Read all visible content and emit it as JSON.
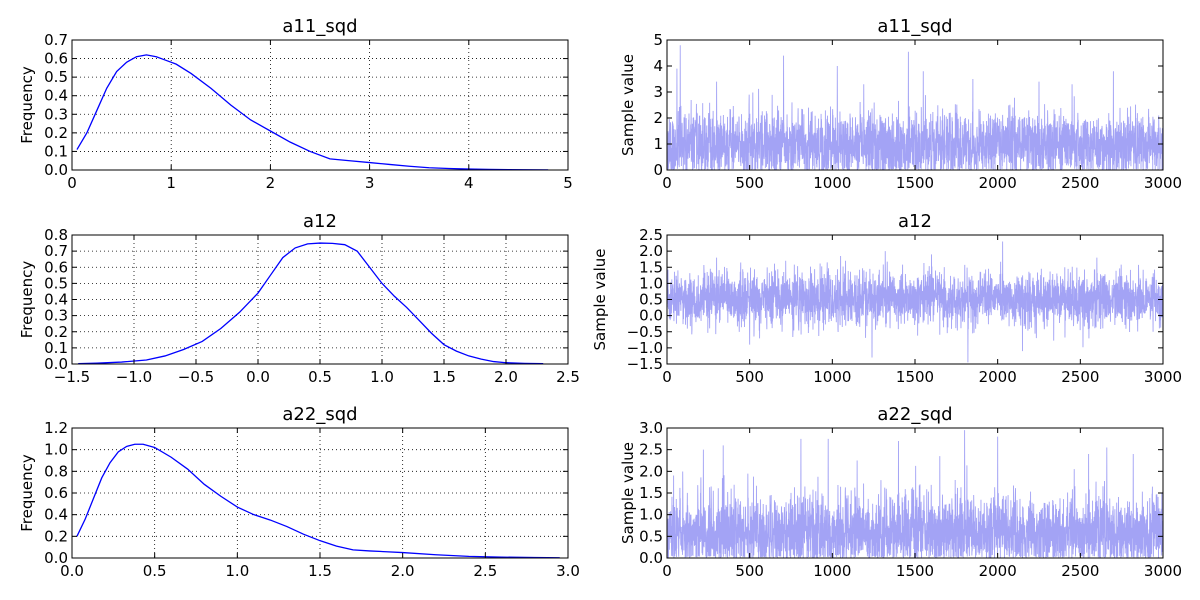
{
  "colors": {
    "kde_line": "#0000ff",
    "trace_line": "#a3a3f5",
    "axes": "#000000",
    "grid": "#000000",
    "background": "#ffffff"
  },
  "chart_data": [
    {
      "id": "a11_sqd_kde",
      "type": "line",
      "title": "a11_sqd",
      "ylabel": "Frequency",
      "xlim": [
        0,
        5
      ],
      "ylim": [
        0,
        0.7
      ],
      "xticks": [
        0,
        1,
        2,
        3,
        4,
        5
      ],
      "xtick_labels": [
        "0",
        "1",
        "2",
        "3",
        "4",
        "5"
      ],
      "yticks": [
        0,
        0.1,
        0.2,
        0.3,
        0.4,
        0.5,
        0.6,
        0.7
      ],
      "ytick_labels": [
        "0.0",
        "0.1",
        "0.2",
        "0.3",
        "0.4",
        "0.5",
        "0.6",
        "0.7"
      ],
      "grid": true,
      "x": [
        0.05,
        0.15,
        0.25,
        0.35,
        0.45,
        0.55,
        0.65,
        0.75,
        0.85,
        0.95,
        1.05,
        1.2,
        1.4,
        1.6,
        1.8,
        2.0,
        2.2,
        2.4,
        2.6,
        2.8,
        3.0,
        3.2,
        3.4,
        3.6,
        3.8,
        4.0,
        4.2,
        4.4,
        4.6,
        4.8
      ],
      "y": [
        0.11,
        0.2,
        0.32,
        0.44,
        0.53,
        0.58,
        0.61,
        0.62,
        0.61,
        0.59,
        0.57,
        0.52,
        0.44,
        0.35,
        0.27,
        0.21,
        0.15,
        0.1,
        0.06,
        0.05,
        0.04,
        0.03,
        0.02,
        0.012,
        0.008,
        0.005,
        0.003,
        0.002,
        0.001,
        0.0005
      ]
    },
    {
      "id": "a11_sqd_trace",
      "type": "line",
      "title": "a11_sqd",
      "ylabel": "Sample value",
      "xlim": [
        0,
        3000
      ],
      "ylim": [
        0,
        5
      ],
      "xticks": [
        0,
        500,
        1000,
        1500,
        2000,
        2500,
        3000
      ],
      "xtick_labels": [
        "0",
        "500",
        "1000",
        "1500",
        "2000",
        "2500",
        "3000"
      ],
      "yticks": [
        0,
        1,
        2,
        3,
        4,
        5
      ],
      "ytick_labels": [
        "0",
        "1",
        "2",
        "3",
        "4",
        "5"
      ],
      "grid": false,
      "trace": {
        "n": 3000,
        "mean": 0.95,
        "sd": 0.65,
        "min": 0.0,
        "max": 4.8,
        "seed": 11,
        "spikes": [
          [
            80,
            4.8
          ],
          [
            60,
            3.9
          ],
          [
            705,
            4.4
          ],
          [
            1460,
            4.55
          ],
          [
            1030,
            4.0
          ],
          [
            1550,
            3.8
          ],
          [
            1190,
            3.3
          ],
          [
            1850,
            3.5
          ],
          [
            2450,
            3.3
          ],
          [
            2700,
            3.8
          ],
          [
            2250,
            3.4
          ],
          [
            300,
            3.4
          ]
        ]
      }
    },
    {
      "id": "a12_kde",
      "type": "line",
      "title": "a12",
      "ylabel": "Frequency",
      "xlim": [
        -1.5,
        2.5
      ],
      "ylim": [
        0,
        0.8
      ],
      "xticks": [
        -1.5,
        -1.0,
        -0.5,
        0.0,
        0.5,
        1.0,
        1.5,
        2.0,
        2.5
      ],
      "xtick_labels": [
        "−1.5",
        "−1.0",
        "−0.5",
        "0.0",
        "0.5",
        "1.0",
        "1.5",
        "2.0",
        "2.5"
      ],
      "yticks": [
        0,
        0.1,
        0.2,
        0.3,
        0.4,
        0.5,
        0.6,
        0.7,
        0.8
      ],
      "ytick_labels": [
        "0.0",
        "0.1",
        "0.2",
        "0.3",
        "0.4",
        "0.5",
        "0.6",
        "0.7",
        "0.8"
      ],
      "grid": true,
      "x": [
        -1.45,
        -1.3,
        -1.1,
        -0.9,
        -0.75,
        -0.6,
        -0.45,
        -0.3,
        -0.15,
        0.0,
        0.1,
        0.2,
        0.3,
        0.4,
        0.5,
        0.6,
        0.7,
        0.8,
        0.9,
        1.0,
        1.1,
        1.2,
        1.3,
        1.4,
        1.5,
        1.6,
        1.7,
        1.8,
        1.9,
        2.0,
        2.15,
        2.3
      ],
      "y": [
        0.002,
        0.005,
        0.012,
        0.025,
        0.05,
        0.09,
        0.14,
        0.22,
        0.32,
        0.44,
        0.55,
        0.66,
        0.72,
        0.745,
        0.75,
        0.748,
        0.74,
        0.7,
        0.6,
        0.5,
        0.42,
        0.35,
        0.27,
        0.19,
        0.12,
        0.08,
        0.05,
        0.03,
        0.015,
        0.008,
        0.004,
        0.002
      ]
    },
    {
      "id": "a12_trace",
      "type": "line",
      "title": "a12",
      "ylabel": "Sample value",
      "xlim": [
        0,
        3000
      ],
      "ylim": [
        -1.5,
        2.5
      ],
      "xticks": [
        0,
        500,
        1000,
        1500,
        2000,
        2500,
        3000
      ],
      "xtick_labels": [
        "0",
        "500",
        "1000",
        "1500",
        "2000",
        "2500",
        "3000"
      ],
      "yticks": [
        -1.5,
        -1.0,
        -0.5,
        0.0,
        0.5,
        1.0,
        1.5,
        2.0,
        2.5
      ],
      "ytick_labels": [
        "−1.5",
        "−1.0",
        "−0.5",
        "0.0",
        "0.5",
        "1.0",
        "1.5",
        "2.0",
        "2.5"
      ],
      "grid": false,
      "trace": {
        "n": 3000,
        "mean": 0.5,
        "sd": 0.42,
        "min": -1.45,
        "max": 2.3,
        "seed": 23,
        "spikes": [
          [
            2030,
            2.3
          ],
          [
            1820,
            -1.45
          ],
          [
            1240,
            -1.3
          ],
          [
            1320,
            2.0
          ],
          [
            1600,
            1.9
          ],
          [
            2150,
            -1.1
          ],
          [
            300,
            1.8
          ],
          [
            1050,
            1.85
          ],
          [
            2600,
            1.8
          ],
          [
            500,
            -0.9
          ]
        ]
      }
    },
    {
      "id": "a22_sqd_kde",
      "type": "line",
      "title": "a22_sqd",
      "ylabel": "Frequency",
      "xlim": [
        0,
        3.0
      ],
      "ylim": [
        0,
        1.2
      ],
      "xticks": [
        0,
        0.5,
        1.0,
        1.5,
        2.0,
        2.5,
        3.0
      ],
      "xtick_labels": [
        "0.0",
        "0.5",
        "1.0",
        "1.5",
        "2.0",
        "2.5",
        "3.0"
      ],
      "yticks": [
        0,
        0.2,
        0.4,
        0.6,
        0.8,
        1.0,
        1.2
      ],
      "ytick_labels": [
        "0.0",
        "0.2",
        "0.4",
        "0.6",
        "0.8",
        "1.0",
        "1.2"
      ],
      "grid": true,
      "x": [
        0.03,
        0.08,
        0.13,
        0.18,
        0.23,
        0.28,
        0.33,
        0.38,
        0.43,
        0.5,
        0.6,
        0.7,
        0.8,
        0.9,
        1.0,
        1.1,
        1.2,
        1.3,
        1.4,
        1.5,
        1.6,
        1.7,
        1.8,
        1.9,
        2.0,
        2.2,
        2.4,
        2.6,
        2.8,
        2.95
      ],
      "y": [
        0.2,
        0.36,
        0.55,
        0.74,
        0.88,
        0.98,
        1.03,
        1.05,
        1.05,
        1.02,
        0.93,
        0.82,
        0.68,
        0.57,
        0.47,
        0.4,
        0.35,
        0.29,
        0.22,
        0.16,
        0.11,
        0.075,
        0.065,
        0.058,
        0.05,
        0.03,
        0.015,
        0.008,
        0.004,
        0.002
      ]
    },
    {
      "id": "a22_sqd_trace",
      "type": "line",
      "title": "a22_sqd",
      "ylabel": "Sample value",
      "xlim": [
        0,
        3000
      ],
      "ylim": [
        0,
        3.0
      ],
      "xticks": [
        0,
        500,
        1000,
        1500,
        2000,
        2500,
        3000
      ],
      "xtick_labels": [
        "0",
        "500",
        "1000",
        "1500",
        "2000",
        "2500",
        "3000"
      ],
      "yticks": [
        0,
        0.5,
        1.0,
        1.5,
        2.0,
        2.5,
        3.0
      ],
      "ytick_labels": [
        "0.0",
        "0.5",
        "1.0",
        "1.5",
        "2.0",
        "2.5",
        "3.0"
      ],
      "grid": false,
      "trace": {
        "n": 3000,
        "mean": 0.6,
        "sd": 0.45,
        "min": 0.0,
        "max": 2.95,
        "seed": 37,
        "spikes": [
          [
            1800,
            2.95
          ],
          [
            2000,
            2.8
          ],
          [
            810,
            2.75
          ],
          [
            975,
            2.75
          ],
          [
            1400,
            2.7
          ],
          [
            340,
            2.6
          ],
          [
            220,
            2.5
          ],
          [
            2660,
            2.55
          ],
          [
            2550,
            2.4
          ],
          [
            1650,
            2.35
          ],
          [
            1150,
            2.25
          ],
          [
            2820,
            2.4
          ]
        ]
      }
    }
  ]
}
